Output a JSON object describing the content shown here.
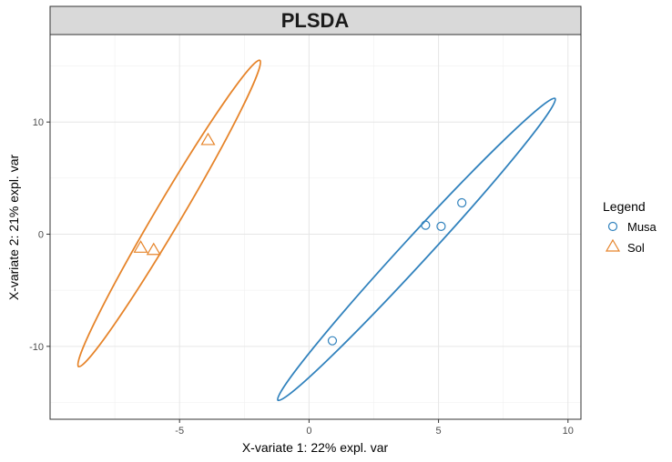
{
  "chart_data": {
    "type": "scatter",
    "title": "PLSDA",
    "xlabel": "X-variate 1: 22% expl. var",
    "ylabel": "X-variate 2: 21% expl. var",
    "xlim": [
      -10.0,
      10.5
    ],
    "ylim": [
      -16.5,
      17.8
    ],
    "x_ticks": [
      -5,
      0,
      5,
      10
    ],
    "y_ticks": [
      -10,
      0,
      10
    ],
    "grid": true,
    "legend": {
      "title": "Legend",
      "position": "right"
    },
    "series": [
      {
        "name": "Musa",
        "marker": "circle",
        "color": "#3182bd",
        "points": [
          {
            "x": 0.9,
            "y": -9.5
          },
          {
            "x": 4.5,
            "y": 0.8
          },
          {
            "x": 5.1,
            "y": 0.7
          },
          {
            "x": 5.9,
            "y": 2.8
          }
        ],
        "ellipse": {
          "from": {
            "x": -1.2,
            "y": -14.8
          },
          "to": {
            "x": 9.5,
            "y": 12.1
          },
          "half_width": 0.5
        }
      },
      {
        "name": "Sol",
        "marker": "triangle",
        "color": "#e6842a",
        "points": [
          {
            "x": -6.5,
            "y": -1.2
          },
          {
            "x": -6.0,
            "y": -1.4
          },
          {
            "x": -3.9,
            "y": 8.4
          }
        ],
        "ellipse": {
          "from": {
            "x": -8.9,
            "y": -11.8
          },
          "to": {
            "x": -1.9,
            "y": 15.5
          },
          "half_width": 0.5
        }
      }
    ]
  }
}
